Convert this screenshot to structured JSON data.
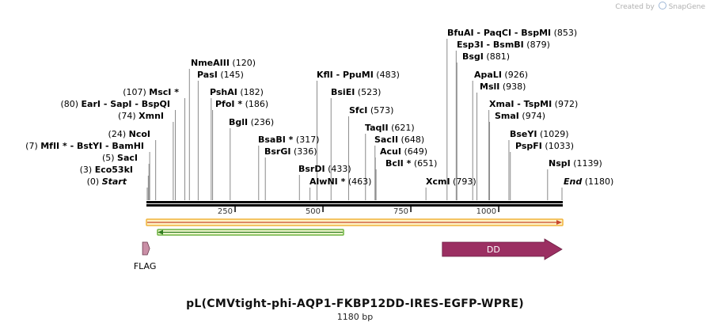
{
  "watermark": "Created by",
  "brand": "SnapGene",
  "title": "pL(CMVtight-phi-AQP1-FKBP12DD-IRES-EGFP-WPRE)",
  "length_text": "1180 bp",
  "sequence_length": 1180,
  "ruler_ticks": [
    "250",
    "500",
    "750",
    "1000"
  ],
  "sites": [
    {
      "prefix": "(0)",
      "name": "Start",
      "pos": 0
    },
    {
      "prefix": "(3)",
      "name": "Eco53kI",
      "pos": 3
    },
    {
      "prefix": "(5)",
      "name": "SacI",
      "pos": 5
    },
    {
      "prefix": "(7)",
      "name": "MfII * - BstYI - BamHI",
      "pos": 7
    },
    {
      "prefix": "(24)",
      "name": "NcoI",
      "pos": 24
    },
    {
      "prefix": "(74)",
      "name": "XmnI",
      "pos": 74
    },
    {
      "prefix": "(80)",
      "name": "EarI - SapI - BspQI",
      "pos": 80
    },
    {
      "prefix": "(107)",
      "name": "MscI *",
      "pos": 107
    },
    {
      "name": "NmeAIII",
      "suffix": "(120)",
      "pos": 120
    },
    {
      "name": "PasI",
      "suffix": "(145)",
      "pos": 145
    },
    {
      "name": "PshAI",
      "suffix": "(182)",
      "pos": 182
    },
    {
      "name": "PfoI *",
      "suffix": "(186)",
      "pos": 186
    },
    {
      "name": "BglI",
      "suffix": "(236)",
      "pos": 236
    },
    {
      "name": "BsaBI *",
      "suffix": "(317)",
      "pos": 317
    },
    {
      "name": "BsrGI",
      "suffix": "(336)",
      "pos": 336
    },
    {
      "name": "BsrDI",
      "suffix": "(433)",
      "pos": 433
    },
    {
      "name": "AlwNI *",
      "suffix": "(463)",
      "pos": 463
    },
    {
      "name": "KflI - PpuMI",
      "suffix": "(483)",
      "pos": 483
    },
    {
      "name": "BsiEI",
      "suffix": "(523)",
      "pos": 523
    },
    {
      "name": "SfcI",
      "suffix": "(573)",
      "pos": 573
    },
    {
      "name": "TaqII",
      "suffix": "(621)",
      "pos": 621
    },
    {
      "name": "SacII",
      "suffix": "(648)",
      "pos": 648
    },
    {
      "name": "AcuI",
      "suffix": "(649)",
      "pos": 649
    },
    {
      "name": "BclI *",
      "suffix": "(651)",
      "pos": 651
    },
    {
      "name": "XcmI",
      "suffix": "(793)",
      "pos": 793
    },
    {
      "name": "BfuAI - PaqCI - BspMI",
      "suffix": "(853)",
      "pos": 853
    },
    {
      "name": "Esp3I - BsmBI",
      "suffix": "(879)",
      "pos": 879
    },
    {
      "name": "BsgI",
      "suffix": "(881)",
      "pos": 881
    },
    {
      "name": "ApaLI",
      "suffix": "(926)",
      "pos": 926
    },
    {
      "name": "MslI",
      "suffix": "(938)",
      "pos": 938
    },
    {
      "name": "XmaI - TspMI",
      "suffix": "(972)",
      "pos": 972
    },
    {
      "name": "SmaI",
      "suffix": "(974)",
      "pos": 974
    },
    {
      "name": "BseYI",
      "suffix": "(1029)",
      "pos": 1029
    },
    {
      "name": "PspFI",
      "suffix": "(1033)",
      "pos": 1033
    },
    {
      "name": "NspI",
      "suffix": "(1139)",
      "pos": 1139
    },
    {
      "name": "End",
      "suffix": "(1180)",
      "pos": 1180
    }
  ],
  "features": [
    {
      "name": "FLAG",
      "start": 25,
      "end": 48,
      "color": "#c98fa6"
    },
    {
      "name": "DD",
      "start": 853,
      "end": 1180,
      "color": "#9b2f62"
    }
  ],
  "colors": {
    "orf_full": "#f0b33a",
    "orf_green": "#6db33f",
    "backbone": "#000000"
  }
}
